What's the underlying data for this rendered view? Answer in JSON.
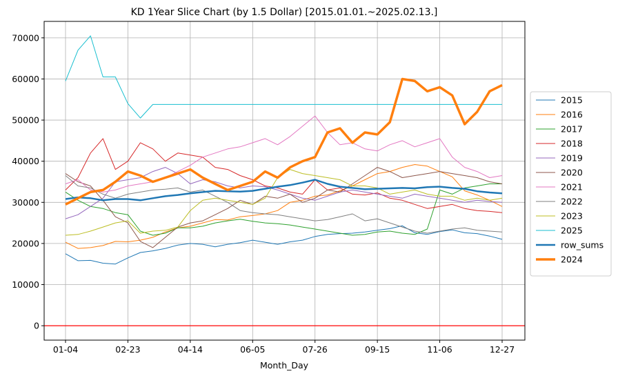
{
  "chart_data": {
    "type": "line",
    "title": "KD 1Year Slice Chart (by 1.5 Dollar) [2015.01.01.~2025.02.13.]",
    "xlabel": "Month_Day",
    "ylabel": "",
    "ylim": [
      -3500,
      74000
    ],
    "grid": true,
    "legend_position": "right, outside",
    "x_ticks": [
      "01-04",
      "02-23",
      "04-14",
      "06-05",
      "07-26",
      "09-15",
      "11-06",
      "12-27"
    ],
    "y_ticks": [
      0,
      10000,
      20000,
      30000,
      40000,
      50000,
      60000,
      70000
    ],
    "x_points": [
      "01-04",
      "01-14",
      "01-24",
      "02-03",
      "02-13",
      "02-23",
      "03-05",
      "03-15",
      "03-25",
      "04-04",
      "04-14",
      "04-24",
      "05-04",
      "05-15",
      "05-25",
      "06-05",
      "06-15",
      "06-25",
      "07-06",
      "07-16",
      "07-26",
      "08-05",
      "08-15",
      "08-25",
      "09-05",
      "09-15",
      "09-25",
      "10-05",
      "10-16",
      "10-26",
      "11-06",
      "11-16",
      "11-26",
      "12-07",
      "12-17",
      "12-27"
    ],
    "reference_line": {
      "y": 0,
      "color": "#ff0000"
    },
    "series": [
      {
        "name": "2015",
        "color": "#1f77b4",
        "width": 1,
        "values": [
          17500,
          15800,
          15900,
          15200,
          15000,
          16500,
          17800,
          18200,
          18800,
          19600,
          20000,
          19800,
          19200,
          19800,
          20200,
          20800,
          20300,
          19800,
          20400,
          20800,
          21700,
          22200,
          22400,
          22500,
          22800,
          23200,
          23600,
          24300,
          22600,
          22200,
          22900,
          23300,
          22600,
          22400,
          21800,
          21000
        ]
      },
      {
        "name": "2016",
        "color": "#ff7f0e",
        "width": 1,
        "values": [
          20300,
          18800,
          19000,
          19500,
          20500,
          20400,
          20800,
          21500,
          22800,
          23800,
          24200,
          25000,
          25800,
          25700,
          26500,
          26800,
          27200,
          28000,
          30000,
          30500,
          31500,
          31800,
          32800,
          34000,
          35500,
          37000,
          37500,
          38500,
          39200,
          38800,
          37500,
          36200,
          32800,
          31800,
          30500,
          29000
        ]
      },
      {
        "name": "2017",
        "color": "#2ca02c",
        "width": 1,
        "values": [
          32500,
          30500,
          29000,
          28500,
          27500,
          27000,
          23000,
          22000,
          22500,
          23800,
          23800,
          24200,
          25000,
          25500,
          25900,
          25400,
          25000,
          24800,
          24500,
          24000,
          23500,
          23000,
          22500,
          22000,
          22200,
          22800,
          23000,
          22500,
          22200,
          23500,
          33000,
          32000,
          33500,
          34000,
          34500,
          34500
        ]
      },
      {
        "name": "2018",
        "color": "#d62728",
        "width": 1,
        "values": [
          33000,
          36000,
          42000,
          45500,
          38000,
          40000,
          44500,
          43000,
          40000,
          42000,
          41500,
          41000,
          38500,
          38000,
          36500,
          35500,
          34000,
          33500,
          32500,
          32000,
          35500,
          33000,
          33500,
          32000,
          31800,
          32300,
          31000,
          30500,
          29500,
          28500,
          29000,
          29500,
          28500,
          28000,
          27800,
          27500
        ]
      },
      {
        "name": "2019",
        "color": "#9467bd",
        "width": 1,
        "values": [
          26000,
          27000,
          29000,
          31000,
          35000,
          35500,
          36000,
          37500,
          38500,
          37000,
          34500,
          35500,
          35000,
          34000,
          33500,
          34000,
          33800,
          33000,
          32000,
          31000,
          30500,
          31500,
          32500,
          33000,
          32500,
          32000,
          31500,
          31000,
          32000,
          31500,
          31000,
          30500,
          30000,
          30500,
          30200,
          30000
        ]
      },
      {
        "name": "2020",
        "color": "#8c564b",
        "width": 1,
        "values": [
          37000,
          35000,
          34000,
          30500,
          26500,
          25000,
          20500,
          19000,
          21500,
          24000,
          25000,
          25500,
          27000,
          28500,
          30500,
          29500,
          31500,
          31000,
          32000,
          30000,
          31000,
          33000,
          32500,
          34500,
          36500,
          38500,
          37500,
          36000,
          36500,
          37000,
          37500,
          37000,
          36500,
          36000,
          35000,
          34500
        ]
      },
      {
        "name": "2021",
        "color": "#e377c2",
        "width": 1,
        "values": [
          34500,
          35500,
          33000,
          32500,
          33000,
          34000,
          34500,
          35000,
          36000,
          37500,
          39000,
          41000,
          42000,
          43000,
          43500,
          44500,
          45500,
          44000,
          46000,
          48500,
          51000,
          47000,
          44000,
          44500,
          43000,
          42500,
          44000,
          45000,
          43500,
          44500,
          45500,
          41000,
          38500,
          37500,
          36000,
          36500
        ]
      },
      {
        "name": "2022",
        "color": "#7f7f7f",
        "width": 1,
        "values": [
          36500,
          34000,
          33500,
          32000,
          31000,
          32000,
          32500,
          33000,
          33200,
          33500,
          32500,
          33000,
          31500,
          30000,
          28000,
          27500,
          27200,
          27000,
          26500,
          26000,
          25500,
          25800,
          26500,
          27200,
          25500,
          26000,
          25000,
          24000,
          23000,
          22500,
          23000,
          23500,
          23800,
          23200,
          23000,
          22800
        ]
      },
      {
        "name": "2023",
        "color": "#bcbd22",
        "width": 1,
        "values": [
          22000,
          22200,
          23000,
          24000,
          25000,
          25500,
          22500,
          23000,
          23200,
          24000,
          28000,
          30500,
          31000,
          30500,
          30000,
          29500,
          31000,
          36000,
          38000,
          37000,
          36500,
          36000,
          35500,
          34000,
          34000,
          33500,
          32000,
          32500,
          33000,
          32000,
          31500,
          31500,
          30500,
          31000,
          30500,
          31000
        ]
      },
      {
        "name": "2025",
        "color": "#17becf",
        "width": 1,
        "values": [
          59500,
          67000,
          70500,
          60500,
          60500,
          54000,
          50500,
          53800,
          53800,
          53800,
          53800,
          53800,
          53800,
          53800,
          53800,
          53800,
          53800,
          53800,
          53800,
          53800,
          53800,
          53800,
          53800,
          53800,
          53800,
          53800,
          53800,
          53800,
          53800,
          53800,
          53800,
          53800,
          53800,
          53800,
          53800,
          53800
        ]
      },
      {
        "name": "row_sums",
        "color": "#1f77b4",
        "width": 2.5,
        "values": [
          30800,
          31200,
          31000,
          30500,
          30800,
          30800,
          30500,
          31000,
          31500,
          31800,
          32200,
          32500,
          32800,
          32700,
          32600,
          32800,
          33300,
          33800,
          34200,
          34800,
          35500,
          34500,
          33800,
          33500,
          33200,
          33300,
          33400,
          33500,
          33400,
          33700,
          33800,
          33500,
          33300,
          32700,
          32400,
          32200
        ]
      },
      {
        "name": "2024",
        "color": "#ff7f0e",
        "width": 3.5,
        "values": [
          29500,
          31000,
          32500,
          33000,
          35000,
          37500,
          36500,
          35000,
          36000,
          37000,
          38000,
          36000,
          34500,
          33000,
          34000,
          35000,
          37500,
          36000,
          38500,
          40000,
          41000,
          47000,
          48000,
          44500,
          47000,
          46500,
          49500,
          60000,
          59500,
          57000,
          58000,
          56000,
          49000,
          52000,
          57000,
          58500
        ]
      }
    ]
  }
}
